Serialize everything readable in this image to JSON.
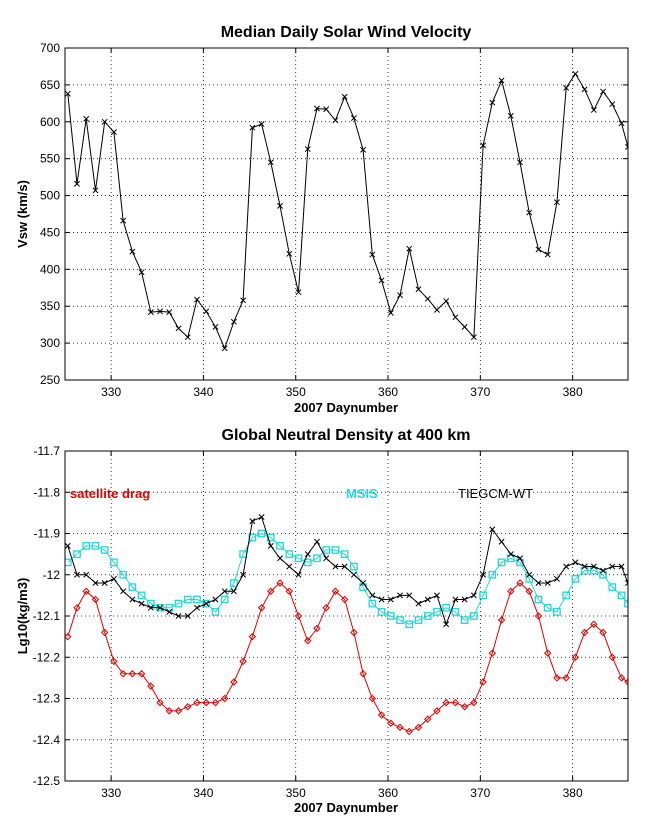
{
  "chart_data": [
    {
      "type": "line",
      "title": "Median Daily Solar Wind Velocity",
      "xlabel": "2007 Daynumber",
      "ylabel": "Vsw (km/s)",
      "xlim": [
        325,
        386
      ],
      "ylim": [
        250,
        700
      ],
      "xticks": [
        330,
        340,
        350,
        360,
        370,
        380
      ],
      "yticks": [
        250,
        300,
        350,
        400,
        450,
        500,
        550,
        600,
        650,
        700
      ],
      "grid": true,
      "series": [
        {
          "color": "#000000",
          "marker": "x",
          "x": [
            325.3,
            326.3,
            327.3,
            328.3,
            329.3,
            330.3,
            331.3,
            332.3,
            333.3,
            334.3,
            335.3,
            336.3,
            337.3,
            338.3,
            339.3,
            340.3,
            341.3,
            342.3,
            343.3,
            344.3,
            345.3,
            346.3,
            347.3,
            348.3,
            349.3,
            350.3,
            351.3,
            352.3,
            353.3,
            354.3,
            355.3,
            356.3,
            357.3,
            358.3,
            359.3,
            360.3,
            361.3,
            362.3,
            363.3,
            364.3,
            365.3,
            366.3,
            367.3,
            368.3,
            369.3,
            370.3,
            371.3,
            372.3,
            373.3,
            374.3,
            375.3,
            376.3,
            377.3,
            378.3,
            379.3,
            380.3,
            381.3,
            382.3,
            383.3,
            384.3,
            385.3,
            386
          ],
          "y": [
            638,
            516,
            604,
            507,
            600,
            586,
            466,
            424,
            396,
            342,
            343,
            342,
            320,
            308,
            359,
            343,
            322,
            293,
            329,
            358,
            592,
            597,
            545,
            486,
            421,
            369,
            563,
            618,
            617,
            602,
            634,
            605,
            562,
            420,
            385,
            341,
            365,
            428,
            373,
            360,
            345,
            357,
            335,
            322,
            308,
            568,
            626,
            656,
            608,
            545,
            477,
            427,
            420,
            491,
            646,
            665,
            644,
            616,
            641,
            624,
            598,
            566
          ]
        }
      ]
    },
    {
      "type": "line",
      "title": "Global Neutral Density at 400 km",
      "xlabel": "2007 Daynumber",
      "ylabel": "Lg10(kg/m3)",
      "xlim": [
        325,
        386
      ],
      "ylim": [
        -12.5,
        -11.7
      ],
      "xticks": [
        330,
        340,
        350,
        360,
        370,
        380
      ],
      "yticks": [
        -12.5,
        -12.4,
        -12.3,
        -12.2,
        -12.1,
        -12,
        -11.9,
        -11.8,
        -11.7
      ],
      "grid": true,
      "series": [
        {
          "name": "satellite drag",
          "color": "#e00000",
          "marker": "diamond",
          "x": [
            325.3,
            326.3,
            327.3,
            328.3,
            329.3,
            330.3,
            331.3,
            332.3,
            333.3,
            334.3,
            335.3,
            336.3,
            337.3,
            338.3,
            339.3,
            340.3,
            341.3,
            342.3,
            343.3,
            344.3,
            345.3,
            346.3,
            347.3,
            348.3,
            349.3,
            350.3,
            351.3,
            352.3,
            353.3,
            354.3,
            355.3,
            356.3,
            357.3,
            358.3,
            359.3,
            360.3,
            361.3,
            362.3,
            363.3,
            364.3,
            365.3,
            366.3,
            367.3,
            368.3,
            369.3,
            370.3,
            371.3,
            372.3,
            373.3,
            374.3,
            375.3,
            376.3,
            377.3,
            378.3,
            379.3,
            380.3,
            381.3,
            382.3,
            383.3,
            384.3,
            385.3,
            386
          ],
          "y": [
            -12.15,
            -12.08,
            -12.04,
            -12.06,
            -12.14,
            -12.21,
            -12.24,
            -12.24,
            -12.24,
            -12.27,
            -12.31,
            -12.33,
            -12.33,
            -12.32,
            -12.31,
            -12.31,
            -12.31,
            -12.3,
            -12.26,
            -12.21,
            -12.15,
            -12.08,
            -12.04,
            -12.02,
            -12.04,
            -12.1,
            -12.16,
            -12.13,
            -12.08,
            -12.04,
            -12.06,
            -12.14,
            -12.24,
            -12.3,
            -12.34,
            -12.36,
            -12.37,
            -12.38,
            -12.37,
            -12.35,
            -12.33,
            -12.31,
            -12.31,
            -12.32,
            -12.31,
            -12.26,
            -12.19,
            -12.11,
            -12.04,
            -12.02,
            -12.04,
            -12.1,
            -12.19,
            -12.25,
            -12.25,
            -12.2,
            -12.14,
            -12.12,
            -12.14,
            -12.2,
            -12.25,
            -12.26
          ]
        },
        {
          "name": "MSIS",
          "color": "#22d8d8",
          "marker": "square",
          "x": [
            325.3,
            326.3,
            327.3,
            328.3,
            329.3,
            330.3,
            331.3,
            332.3,
            333.3,
            334.3,
            335.3,
            336.3,
            337.3,
            338.3,
            339.3,
            340.3,
            341.3,
            342.3,
            343.3,
            344.3,
            345.3,
            346.3,
            347.3,
            348.3,
            349.3,
            350.3,
            351.3,
            352.3,
            353.3,
            354.3,
            355.3,
            356.3,
            357.3,
            358.3,
            359.3,
            360.3,
            361.3,
            362.3,
            363.3,
            364.3,
            365.3,
            366.3,
            367.3,
            368.3,
            369.3,
            370.3,
            371.3,
            372.3,
            373.3,
            374.3,
            375.3,
            376.3,
            377.3,
            378.3,
            379.3,
            380.3,
            381.3,
            382.3,
            383.3,
            384.3,
            385.3,
            386
          ],
          "y": [
            -11.97,
            -11.95,
            -11.93,
            -11.93,
            -11.94,
            -11.97,
            -12.0,
            -12.03,
            -12.05,
            -12.07,
            -12.08,
            -12.08,
            -12.07,
            -12.06,
            -12.06,
            -12.07,
            -12.09,
            -12.06,
            -12.02,
            -11.95,
            -11.91,
            -11.9,
            -11.91,
            -11.93,
            -11.95,
            -11.96,
            -11.97,
            -11.96,
            -11.94,
            -11.94,
            -11.95,
            -11.98,
            -12.03,
            -12.07,
            -12.09,
            -12.1,
            -12.11,
            -12.12,
            -12.11,
            -12.1,
            -12.09,
            -12.08,
            -12.09,
            -12.11,
            -12.1,
            -12.05,
            -12.0,
            -11.97,
            -11.96,
            -11.97,
            -12.01,
            -12.06,
            -12.08,
            -12.09,
            -12.05,
            -12.01,
            -11.99,
            -11.99,
            -12.0,
            -12.03,
            -12.05,
            -12.07
          ]
        },
        {
          "name": "TIEGCM-WT",
          "color": "#000000",
          "marker": "x",
          "x": [
            325.3,
            326.3,
            327.3,
            328.3,
            329.3,
            330.3,
            331.3,
            332.3,
            333.3,
            334.3,
            335.3,
            336.3,
            337.3,
            338.3,
            339.3,
            340.3,
            341.3,
            342.3,
            343.3,
            344.3,
            345.3,
            346.3,
            347.3,
            348.3,
            349.3,
            350.3,
            351.3,
            352.3,
            353.3,
            354.3,
            355.3,
            356.3,
            357.3,
            358.3,
            359.3,
            360.3,
            361.3,
            362.3,
            363.3,
            364.3,
            365.3,
            366.3,
            367.3,
            368.3,
            369.3,
            370.3,
            371.3,
            372.3,
            373.3,
            374.3,
            375.3,
            376.3,
            377.3,
            378.3,
            379.3,
            380.3,
            381.3,
            382.3,
            383.3,
            384.3,
            385.3,
            386
          ],
          "y": [
            -11.93,
            -12.0,
            -12.0,
            -12.02,
            -12.02,
            -12.01,
            -12.04,
            -12.06,
            -12.07,
            -12.08,
            -12.08,
            -12.09,
            -12.1,
            -12.1,
            -12.08,
            -12.07,
            -12.06,
            -12.04,
            -12.04,
            -12.0,
            -11.87,
            -11.86,
            -11.93,
            -11.96,
            -11.98,
            -12.0,
            -11.95,
            -11.92,
            -11.96,
            -11.98,
            -11.98,
            -12.0,
            -12.02,
            -12.05,
            -12.06,
            -12.06,
            -12.05,
            -12.05,
            -12.07,
            -12.06,
            -12.05,
            -12.12,
            -12.06,
            -12.06,
            -12.05,
            -12.0,
            -11.89,
            -11.92,
            -11.95,
            -11.96,
            -12.0,
            -12.02,
            -12.02,
            -12.01,
            -11.98,
            -11.97,
            -11.98,
            -11.98,
            -11.99,
            -11.98,
            -11.98,
            -12.02
          ]
        }
      ],
      "legend_labels": [
        {
          "text": "satellite drag",
          "color": "#e00000",
          "position": "top-left"
        },
        {
          "text": "MSIS",
          "color": "#22d8d8",
          "position": "top-center"
        },
        {
          "text": "TIEGCM-WT",
          "color": "#000000",
          "position": "top-right"
        }
      ]
    }
  ]
}
